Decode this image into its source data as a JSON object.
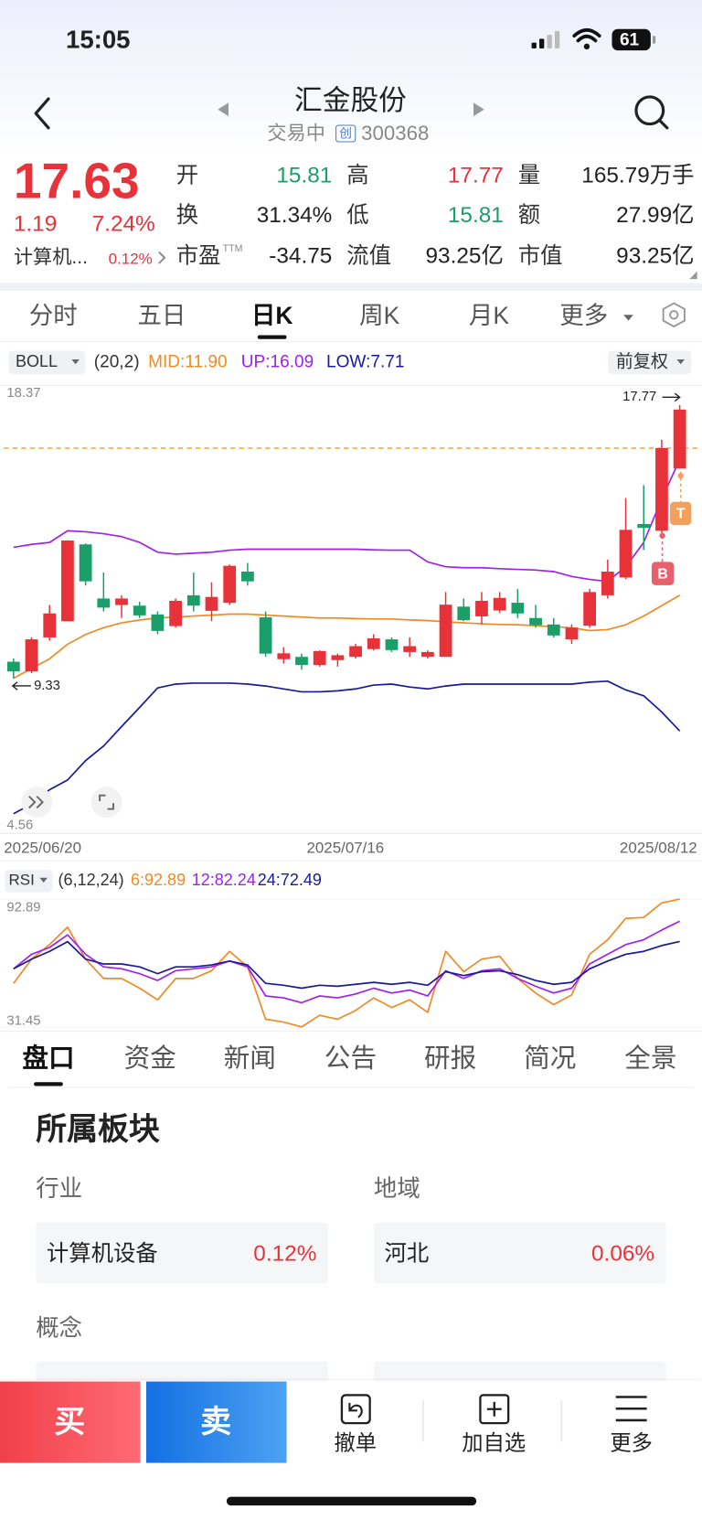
{
  "status": {
    "time": "15:05",
    "battery": "61"
  },
  "header": {
    "title": "汇金股份",
    "trade_status": "交易中",
    "board": "创",
    "code": "300368"
  },
  "quote": {
    "price": "17.63",
    "change": "1.19",
    "change_pct": "7.24%",
    "fields": [
      {
        "label": "开",
        "value": "15.81",
        "color": "#1a9e6a"
      },
      {
        "label": "高",
        "value": "17.77",
        "color": "#e8323a"
      },
      {
        "label": "量",
        "value": "165.79万手",
        "color": "#222222"
      },
      {
        "label": "换",
        "value": "31.34%",
        "color": "#222222"
      },
      {
        "label": "低",
        "value": "15.81",
        "color": "#1a9e6a"
      },
      {
        "label": "额",
        "value": "27.99亿",
        "color": "#222222"
      },
      {
        "label": "市盈",
        "sup": "TTM",
        "value": "-34.75",
        "color": "#222222"
      },
      {
        "label": "流值",
        "value": "93.25亿",
        "color": "#222222"
      },
      {
        "label": "市值",
        "value": "93.25亿",
        "color": "#222222"
      }
    ],
    "sector": {
      "name": "计算机...",
      "pct": "0.12%"
    }
  },
  "kline_tabs": {
    "items": [
      "分时",
      "五日",
      "日K",
      "周K",
      "月K",
      "更多"
    ],
    "active": 2
  },
  "chart_data": [
    {
      "type": "candlestick",
      "indicator": "BOLL",
      "params": "(20,2)",
      "adjust": "前复权",
      "up_color": "#e8323a",
      "down_color": "#1a9e6a",
      "categories": [
        "2025/06/20",
        null,
        null,
        null,
        null,
        null,
        null,
        null,
        null,
        null,
        null,
        null,
        null,
        null,
        null,
        null,
        null,
        null,
        "2025/07/16",
        null,
        null,
        null,
        null,
        null,
        null,
        null,
        null,
        null,
        null,
        null,
        null,
        null,
        null,
        null,
        null,
        null,
        null,
        "2025/08/12"
      ],
      "open": [
        9.85,
        9.55,
        10.6,
        11.1,
        13.47,
        11.8,
        11.6,
        11.58,
        11.31,
        10.95,
        11.9,
        11.42,
        11.67,
        12.63,
        11.22,
        9.93,
        10.0,
        9.75,
        9.9,
        10.0,
        10.24,
        10.54,
        10.15,
        10.0,
        10.0,
        11.55,
        11.25,
        11.43,
        11.67,
        11.2,
        11.0,
        10.54,
        10.96,
        11.9,
        12.45,
        14.1,
        13.89,
        15.81
      ],
      "high": [
        9.95,
        10.6,
        11.6,
        13.6,
        13.5,
        12.6,
        11.9,
        11.7,
        11.4,
        11.8,
        12.6,
        12.3,
        12.85,
        12.9,
        11.4,
        10.3,
        10.1,
        10.2,
        10.1,
        10.4,
        10.7,
        10.6,
        10.6,
        10.2,
        12.0,
        11.8,
        12.0,
        12.0,
        12.1,
        11.6,
        11.2,
        11.0,
        12.1,
        13.0,
        14.9,
        15.3,
        16.7,
        17.77
      ],
      "low": [
        9.33,
        9.5,
        10.5,
        11.1,
        12.2,
        11.4,
        11.2,
        11.2,
        10.7,
        10.9,
        11.4,
        11.1,
        11.6,
        12.2,
        10.0,
        9.8,
        9.6,
        9.7,
        9.7,
        9.95,
        10.2,
        10.15,
        10.0,
        9.95,
        10.0,
        11.1,
        11.0,
        11.35,
        11.2,
        10.9,
        10.6,
        10.4,
        10.9,
        11.8,
        12.4,
        13.3,
        13.8,
        15.81
      ],
      "close": [
        9.55,
        10.54,
        11.34,
        13.59,
        12.33,
        11.52,
        11.8,
        11.28,
        10.8,
        11.73,
        11.58,
        11.85,
        12.81,
        12.33,
        10.1,
        10.11,
        9.75,
        10.18,
        10.05,
        10.33,
        10.57,
        10.21,
        10.33,
        10.15,
        11.61,
        11.13,
        11.73,
        11.82,
        11.34,
        10.98,
        10.66,
        10.9,
        12.0,
        12.63,
        13.92,
        13.98,
        16.44,
        17.63
      ],
      "series": [
        {
          "name": "MID",
          "legend": "MID:11.90",
          "color": "#f08a24",
          "values": [
            9.34,
            9.64,
            9.94,
            10.39,
            10.69,
            10.9,
            11.05,
            11.14,
            11.2,
            11.23,
            11.26,
            11.29,
            11.32,
            11.32,
            11.29,
            11.26,
            11.23,
            11.2,
            11.2,
            11.18,
            11.17,
            11.17,
            11.14,
            11.12,
            11.08,
            11.05,
            11.02,
            11.0,
            10.99,
            10.96,
            10.93,
            10.9,
            10.81,
            10.84,
            10.99,
            11.26,
            11.58,
            11.9
          ]
        },
        {
          "name": "UP",
          "legend": "UP:16.09",
          "color": "#a020f0",
          "values": [
            13.38,
            13.47,
            13.53,
            13.89,
            13.86,
            13.8,
            13.71,
            13.53,
            13.23,
            13.17,
            13.2,
            13.23,
            13.29,
            13.32,
            13.32,
            13.32,
            13.32,
            13.32,
            13.32,
            13.32,
            13.3,
            13.29,
            13.29,
            12.93,
            12.78,
            12.75,
            12.75,
            12.72,
            12.7,
            12.68,
            12.63,
            12.48,
            12.39,
            12.33,
            12.78,
            13.53,
            14.87,
            16.09
          ]
        },
        {
          "name": "LOW",
          "legend": "LOW:7.71",
          "color": "#1a1a9a",
          "values": [
            5.16,
            5.46,
            5.9,
            6.2,
            6.8,
            7.25,
            7.85,
            8.44,
            9.04,
            9.16,
            9.19,
            9.19,
            9.19,
            9.16,
            9.1,
            9.01,
            8.92,
            8.92,
            8.95,
            9.01,
            9.13,
            9.16,
            9.07,
            9.01,
            9.1,
            9.16,
            9.16,
            9.16,
            9.16,
            9.16,
            9.16,
            9.16,
            9.22,
            9.25,
            8.98,
            8.8,
            8.3,
            7.71
          ]
        }
      ],
      "ylim": [
        4.56,
        18.37
      ],
      "yticks": [
        4.56,
        18.37
      ],
      "ref_line": 16.44,
      "ref_color": "#f5a623",
      "max_label": "17.77",
      "min_label": "9.33",
      "signals": {
        "sell": "T",
        "buy": "B"
      }
    },
    {
      "type": "line",
      "indicator": "RSI",
      "params": "(6,12,24)",
      "series": [
        {
          "name": "6",
          "legend": "6:92.89",
          "color": "#f08a24",
          "values": [
            52.39,
            64.03,
            71.01,
            79.39,
            64.03,
            54.72,
            54.72,
            50.06,
            44.48,
            54.72,
            54.72,
            58.44,
            67.75,
            60.3,
            35.16,
            33.77,
            31.45,
            37.03,
            35.16,
            39.35,
            45.4,
            40.75,
            44.48,
            38.42,
            67.75,
            57.97,
            64.03,
            65.42,
            54.72,
            47.73,
            42.14,
            46.8,
            66.35,
            73.34,
            83.58,
            84.05,
            91.03,
            92.89
          ]
        },
        {
          "name": "12",
          "legend": "12:82.24",
          "color": "#a020f0",
          "values": [
            59.37,
            66.35,
            69.61,
            75.66,
            66.35,
            60.3,
            59.37,
            57.04,
            53.78,
            58.44,
            59.37,
            60.3,
            63.1,
            60.3,
            46.33,
            45.4,
            43.08,
            46.33,
            45.4,
            47.27,
            50.06,
            47.73,
            49.13,
            46.33,
            58.44,
            54.72,
            58.44,
            59.37,
            54.72,
            50.99,
            47.73,
            50.06,
            61.7,
            66.35,
            71.01,
            73.34,
            77.99,
            82.24
          ]
        },
        {
          "name": "24",
          "legend": "24:72.49",
          "color": "#1a1a9a",
          "values": [
            59.37,
            64.03,
            67.75,
            72.41,
            64.03,
            61.7,
            61.7,
            60.3,
            57.04,
            60.3,
            60.3,
            61.23,
            63.1,
            61.23,
            52.39,
            51.46,
            50.06,
            51.46,
            50.99,
            51.92,
            52.85,
            51.92,
            52.85,
            51.46,
            57.97,
            56.11,
            57.97,
            58.44,
            56.58,
            53.78,
            51.92,
            52.85,
            59.37,
            63.1,
            66.35,
            67.75,
            70.54,
            72.49
          ]
        }
      ],
      "ylim": [
        31.45,
        92.89
      ],
      "yticks": [
        31.45,
        92.89
      ]
    }
  ],
  "info_tabs": {
    "items": [
      "盘口",
      "资金",
      "新闻",
      "公告",
      "研报",
      "简况",
      "全景"
    ],
    "active": 0
  },
  "sectors": {
    "title": "所属板块",
    "industry": {
      "label": "行业",
      "name": "计算机设备",
      "pct": "0.12%"
    },
    "region": {
      "label": "地域",
      "name": "河北",
      "pct": "0.06%"
    },
    "concept": {
      "label": "概念"
    }
  },
  "bottom_bar": {
    "buy": "买",
    "sell": "卖",
    "actions": [
      "撤单",
      "加自选",
      "更多"
    ]
  }
}
